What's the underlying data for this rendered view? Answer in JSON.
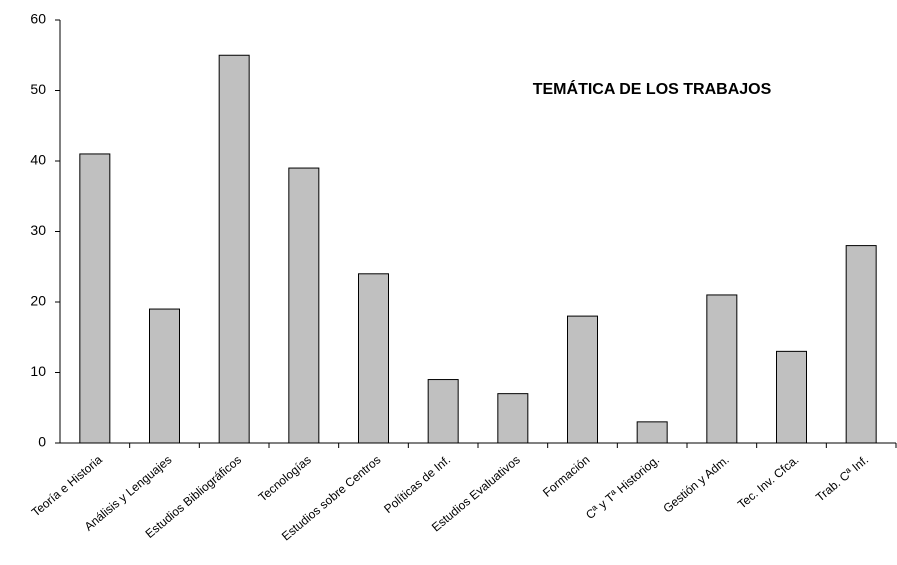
{
  "chart_data": {
    "type": "bar",
    "title": "TEMÁTICA DE LOS TRABAJOS",
    "categories": [
      "Teoría e Historia",
      "Análisis y Lenguajes",
      "Estudios Bibliográficos",
      "Tecnologías",
      "Estudios sobre Centros",
      "Políticas de Inf.",
      "Estudios Evaluativos",
      "Formación",
      "Cª y Tª Historiog.",
      "Gestión y Adm.",
      "Tec. Inv. Cfca.",
      "Trab. Cª Inf."
    ],
    "values": [
      41,
      19,
      55,
      39,
      24,
      9,
      7,
      18,
      3,
      21,
      13,
      28
    ],
    "color": "#c0c0c0",
    "ylim": [
      0,
      60
    ],
    "yticks": [
      0,
      10,
      20,
      30,
      40,
      50,
      60
    ],
    "grid": false
  }
}
